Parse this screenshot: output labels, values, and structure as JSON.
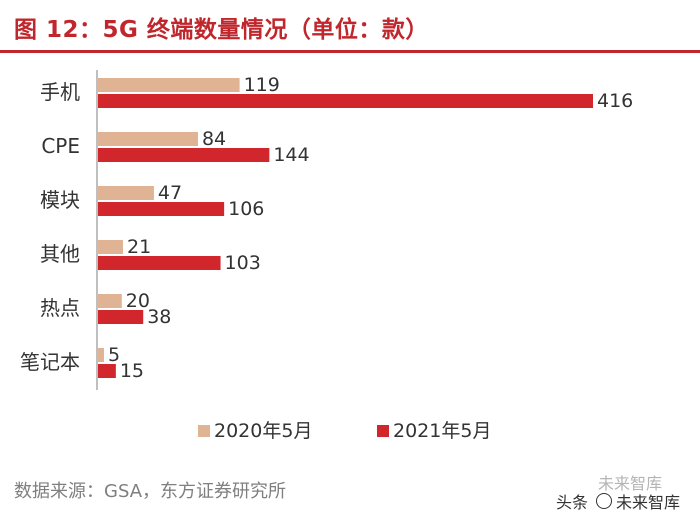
{
  "title": "图 12：5G 终端数量情况（单位：款）",
  "source": "数据来源：GSA，东方证券研究所",
  "watermark": {
    "prefix": "头条",
    "name": "未来智库",
    "ghost": "未来智库"
  },
  "colors": {
    "accent": "#c0272d",
    "series2020": "#dfb393",
    "series2021": "#d0262c",
    "axis": "#7f7f7f"
  },
  "chart_data": {
    "type": "bar",
    "orientation": "horizontal",
    "title": "图 12：5G 终端数量情况（单位：款）",
    "categories": [
      "手机",
      "CPE",
      "模块",
      "其他",
      "热点",
      "笔记本"
    ],
    "series": [
      {
        "name": "2020年5月",
        "values": [
          119,
          84,
          47,
          21,
          20,
          5
        ]
      },
      {
        "name": "2021年5月",
        "values": [
          416,
          144,
          106,
          103,
          38,
          15
        ]
      }
    ],
    "xlim": [
      0,
      416
    ],
    "grid": false,
    "legend": "bottom"
  }
}
